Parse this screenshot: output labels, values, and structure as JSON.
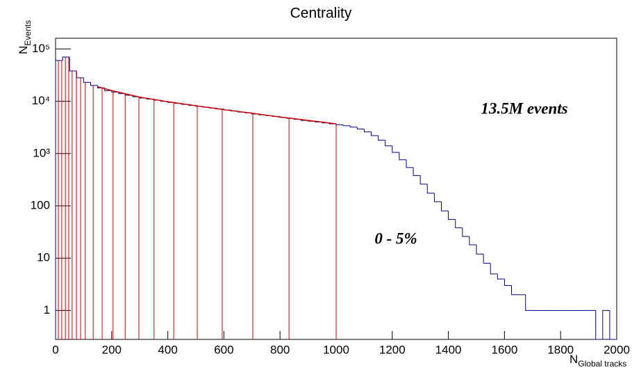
{
  "chart_data": {
    "type": "histogram",
    "title": "Centrality",
    "xlabel": "N",
    "xlabel_sub": "Global tracks",
    "ylabel": "N",
    "ylabel_sub": "Events",
    "log_y": true,
    "color": "#000080",
    "bins": [
      0,
      25,
      50,
      75,
      100,
      125,
      150,
      175,
      200,
      225,
      250,
      275,
      300,
      325,
      350,
      375,
      400,
      425,
      450,
      475,
      500,
      525,
      550,
      575,
      600,
      625,
      650,
      675,
      700,
      725,
      750,
      775,
      800,
      825,
      850,
      875,
      900,
      925,
      950,
      975,
      1000,
      1025,
      1050,
      1075,
      1100,
      1125,
      1150,
      1175,
      1200,
      1225,
      1250,
      1275,
      1300,
      1325,
      1350,
      1375,
      1400,
      1425,
      1450,
      1475,
      1500,
      1525,
      1550,
      1575,
      1600,
      1625,
      1650,
      1675,
      1700,
      1725,
      1750,
      1775,
      1800,
      1825,
      1850,
      1875,
      1900,
      1925,
      1950,
      1975,
      2000
    ],
    "values": [
      60000,
      70000,
      38000,
      28000,
      23000,
      20000,
      18000,
      16000,
      15000,
      14000,
      13000,
      12200,
      11500,
      11000,
      10500,
      10000,
      9500,
      9100,
      8700,
      8300,
      8000,
      7700,
      7400,
      7100,
      6800,
      6500,
      6200,
      6000,
      5700,
      5500,
      5300,
      5100,
      4900,
      4700,
      4500,
      4300,
      4150,
      4000,
      3850,
      3700,
      3550,
      3400,
      3200,
      2950,
      2600,
      2200,
      1800,
      1400,
      1050,
      760,
      540,
      380,
      260,
      175,
      120,
      80,
      55,
      38,
      26,
      18,
      12,
      8,
      5,
      4,
      3,
      2,
      2,
      1,
      1,
      1,
      1,
      1,
      1,
      1,
      1,
      1,
      1,
      0,
      1,
      0
    ],
    "fit": {
      "color": "#cc0000",
      "x": [
        150,
        200,
        300,
        400,
        500,
        600,
        700,
        800,
        900,
        1000
      ],
      "values": [
        19000,
        16000,
        12000,
        9800,
        8200,
        6900,
        5900,
        5000,
        4300,
        3700
      ]
    },
    "cuts": {
      "color": "#cc0000",
      "values": [
        10,
        22,
        35,
        47,
        59,
        74,
        89,
        106,
        134,
        166,
        205,
        248,
        297,
        351,
        421,
        505,
        594,
        703,
        832,
        1000
      ]
    },
    "annotations": [
      "13.5M events",
      "0 - 5%"
    ],
    "xlim": [
      0,
      2000
    ],
    "xticks": [
      0,
      200,
      400,
      600,
      800,
      1000,
      1200,
      1400,
      1600,
      1800,
      2000
    ],
    "ylim": [
      0.28,
      160000
    ],
    "yticks": [
      1,
      10,
      100,
      {
        "value": 1000,
        "label": "10³"
      },
      {
        "value": 10000,
        "label": "10⁴"
      },
      {
        "value": 100000,
        "label": "10⁵"
      }
    ]
  }
}
